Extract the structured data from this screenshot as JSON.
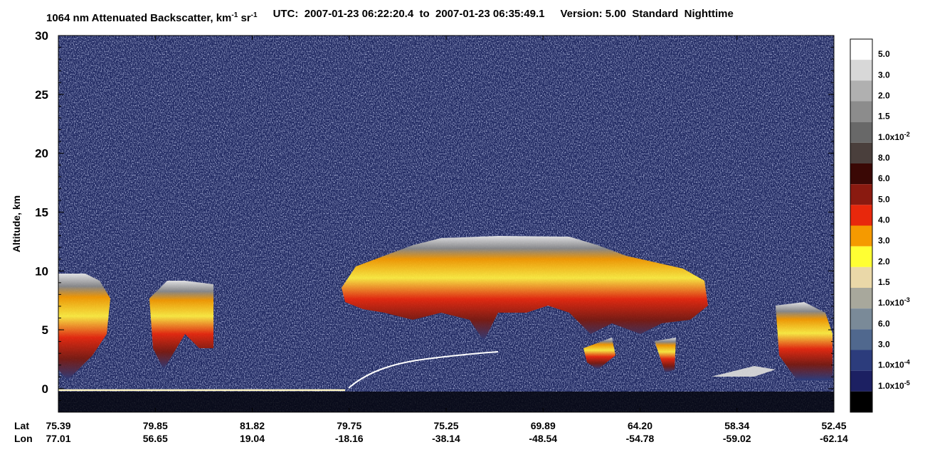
{
  "chart_data": {
    "type": "curtain",
    "title_parts": [
      "1064 nm Attenuated Backscatter, km",
      "-1",
      " sr",
      "-1"
    ],
    "time_range": "UTC:  2007-01-23 06:22:20.4  to  2007-01-23 06:35:49.1",
    "version": "Version: 5.00  Standard  Nighttime",
    "y_label": "Altitude, km",
    "ylim": [
      -2,
      30
    ],
    "yticks": [
      0,
      5,
      10,
      15,
      20,
      25,
      30
    ],
    "x_rows": [
      {
        "name": "Lat",
        "values": [
          "75.39",
          "79.85",
          "81.82",
          "79.75",
          "75.25",
          "69.89",
          "64.20",
          "58.34",
          "52.45"
        ]
      },
      {
        "name": "Lon",
        "values": [
          "77.01",
          "56.65",
          "19.04",
          "-18.16",
          "-38.14",
          "-48.54",
          "-54.78",
          "-59.02",
          "-62.14"
        ]
      }
    ],
    "colorbar": {
      "colors": [
        "#ffffff",
        "#d8d8d8",
        "#b0b0b0",
        "#8c8c8c",
        "#686868",
        "#4a3f3c",
        "#3a0805",
        "#8a1a10",
        "#e8280c",
        "#f59a00",
        "#ffff33",
        "#ead8a8",
        "#a8a89c",
        "#7a8a98",
        "#50688e",
        "#2c3c7c",
        "#1c2062",
        "#000000"
      ],
      "labels": [
        {
          "text": "5.0"
        },
        {
          "text": "3.0"
        },
        {
          "text": "2.0"
        },
        {
          "text": "1.5"
        },
        {
          "text": "1.0x10",
          "sup": "-2"
        },
        {
          "text": "8.0"
        },
        {
          "text": "6.0"
        },
        {
          "text": "5.0"
        },
        {
          "text": "4.0"
        },
        {
          "text": "3.0"
        },
        {
          "text": "2.0"
        },
        {
          "text": "1.5"
        },
        {
          "text": "1.0x10",
          "sup": "-3"
        },
        {
          "text": "6.0"
        },
        {
          "text": "3.0"
        },
        {
          "text": "1.0x10",
          "sup": "-4"
        },
        {
          "text": "1.0x10",
          "sup": "-5"
        }
      ]
    }
  }
}
